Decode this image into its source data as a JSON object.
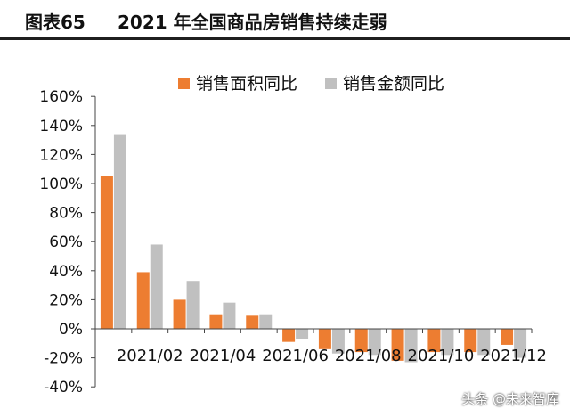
{
  "figure": {
    "label": "图表65",
    "title": "2021 年全国商品房销售持续走弱"
  },
  "watermark": "头条 @未来智库",
  "colors": {
    "area": "#ED7D31",
    "amount": "#C0C0C0",
    "axis": "#444444",
    "text": "#111111"
  },
  "chart_data": {
    "type": "bar",
    "categories": [
      "2021/01",
      "2021/02",
      "2021/03",
      "2021/04",
      "2021/05",
      "2021/06",
      "2021/07",
      "2021/08",
      "2021/09",
      "2021/10",
      "2021/11",
      "2021/12"
    ],
    "tick_labels": [
      "",
      "2021/02",
      "",
      "2021/04",
      "",
      "2021/06",
      "",
      "2021/08",
      "",
      "2021/10",
      "",
      "2021/12"
    ],
    "series": [
      {
        "name": "销售面积同比",
        "values": [
          105,
          39,
          20,
          10,
          9,
          -9,
          -14,
          -16,
          -22,
          -16,
          -16,
          -11
        ]
      },
      {
        "name": "销售金额同比",
        "values": [
          134,
          58,
          33,
          18,
          10,
          -7,
          -17,
          -18,
          -23,
          -18,
          -18,
          -20
        ]
      }
    ],
    "ylim": [
      -40,
      160
    ],
    "yticks": [
      "-40%",
      "-20%",
      "0%",
      "20%",
      "40%",
      "60%",
      "80%",
      "100%",
      "120%",
      "140%",
      "160%"
    ],
    "ytick_values": [
      -40,
      -20,
      0,
      20,
      40,
      60,
      80,
      100,
      120,
      140,
      160
    ],
    "legend_position": "top-right",
    "grid": false
  }
}
